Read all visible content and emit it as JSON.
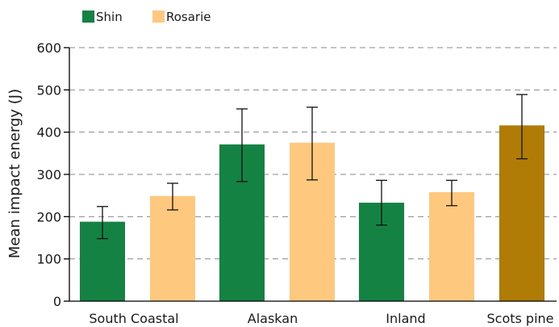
{
  "chart_data": {
    "type": "bar",
    "title": "",
    "ylabel": "Mean impact energy (J)",
    "xlabel": "",
    "ylim": [
      0,
      600
    ],
    "yticks": [
      0,
      100,
      200,
      300,
      400,
      500,
      600
    ],
    "grid": true,
    "legend": "top-left",
    "categories": [
      "South Coastal",
      "Alaskan",
      "Inland",
      "Scots pine"
    ],
    "series": [
      {
        "name": "Shin",
        "color": "#138243",
        "values": [
          188,
          371,
          233,
          null
        ],
        "err_low": [
          148,
          283,
          180,
          null
        ],
        "err_high": [
          224,
          455,
          286,
          null
        ]
      },
      {
        "name": "Rosarie",
        "color": "#fec87e",
        "values": [
          249,
          375,
          258,
          null
        ],
        "err_low": [
          216,
          287,
          226,
          null
        ],
        "err_high": [
          279,
          459,
          286,
          null
        ]
      }
    ],
    "extra_bar": {
      "category": "Scots pine",
      "color": "#b07c05",
      "value": 416,
      "err_low": 337,
      "err_high": 489
    }
  }
}
